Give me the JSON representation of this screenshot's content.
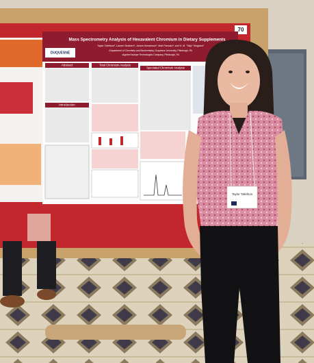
{
  "poster": {
    "board_number": "70",
    "logo": "DUQUESNE",
    "title": "Mass Spectrometry Analysis of Hexavalent Chromium in Dietary Supplements",
    "authors": "Taylor Tollefson¹, Lauren Stubbert¹, James Henderson¹, Matt Pamuku², and H. M. \"Skip\" Kingston¹",
    "affiliations": [
      "¹Department of Chemistry and Biochemistry, Duquesne University, Pittsburgh, PA",
      "²Applied Isotope Technologies Company, Pittsburgh, PA"
    ],
    "sections": [
      "Abstract",
      "Total Chromium Analysis",
      "Speciated Chromium Analysis",
      "Introduction"
    ]
  },
  "badge": {
    "name": "Taylor Tollefson"
  }
}
